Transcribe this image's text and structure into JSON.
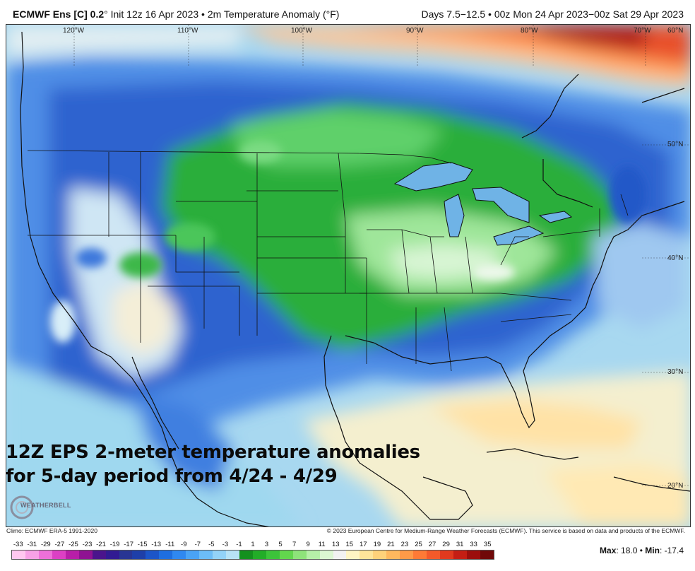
{
  "header": {
    "model_name": "ECMWF Ens [C] 0.2",
    "title_rest": "° Init 12z 16 Apr 2023 • 2m Temperature Anomaly (°F)",
    "valid_period": "Days 7.5−12.5 • 00z Mon 24 Apr 2023−00z Sat 29 Apr 2023"
  },
  "map": {
    "longitude_labels": [
      "120°W",
      "110°W",
      "100°W",
      "90°W",
      "80°W",
      "70°W",
      "60°N"
    ],
    "latitude_labels": [
      "50°N",
      "40°N",
      "30°N",
      "20°N"
    ]
  },
  "overlay": {
    "line1": "12Z EPS 2-meter temperature anomalies",
    "line2": "for 5-day period from 4/24 - 4/29"
  },
  "logo": {
    "text": "WEATHERBELL"
  },
  "footer": {
    "climo": "Climo: ECMWF ERA-5 1991-2020",
    "copyright": "© 2023 European Centre for Medium-Range Weather Forecasts (ECMWF). This service is based on data and products of the ECMWF."
  },
  "legend": {
    "ticks": [
      "-33",
      "-31",
      "-29",
      "-27",
      "-25",
      "-23",
      "-21",
      "-19",
      "-17",
      "-15",
      "-13",
      "-11",
      "-9",
      "-7",
      "-5",
      "-3",
      "-1",
      "1",
      "3",
      "5",
      "7",
      "9",
      "11",
      "13",
      "15",
      "17",
      "19",
      "21",
      "23",
      "25",
      "27",
      "29",
      "31",
      "33",
      "35"
    ],
    "colors": [
      "#ffc8f0",
      "#f7a1e6",
      "#ee70d8",
      "#dc40c4",
      "#b81ea8",
      "#8f1292",
      "#4a148c",
      "#311b92",
      "#283593",
      "#1e3fa8",
      "#1c55c8",
      "#1e6ee0",
      "#2f88f0",
      "#4aa3f5",
      "#6cbdf7",
      "#93d3f8",
      "#b8e3f6",
      "#14901e",
      "#22ad28",
      "#3cc43a",
      "#62d64d",
      "#8ee37a",
      "#b6efa8",
      "#dcf7d2",
      "#f2f2f2",
      "#fff5c4",
      "#ffe59a",
      "#ffd27a",
      "#ffb85e",
      "#ff9a48",
      "#ff7a36",
      "#f45a2a",
      "#e03a1e",
      "#c41e14",
      "#9c0e0c",
      "#700808"
    ],
    "max_label": "Max",
    "max_value": ": 18.0 •",
    "min_label": "Min",
    "min_value": ": -17.4"
  }
}
